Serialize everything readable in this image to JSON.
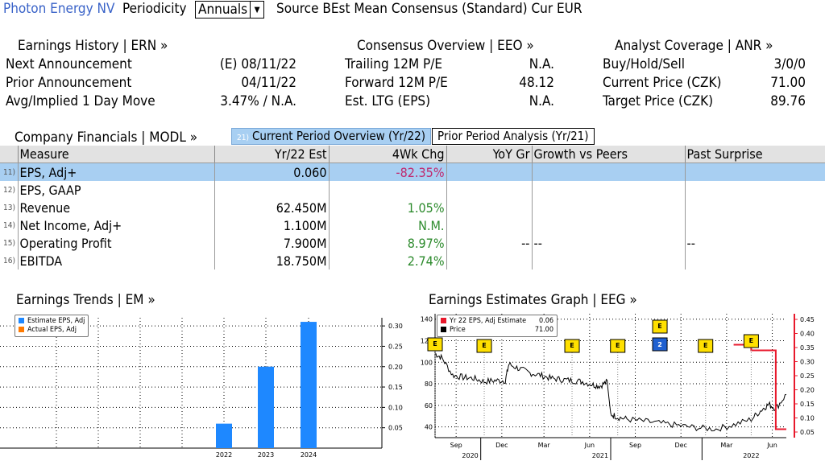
{
  "header": {
    "security": "Photon Energy NV",
    "periodicity_label": "Periodicity",
    "periodicity_value": "Annuals",
    "source_text": "Source BEst Mean Consensus (Standard) Cur EUR"
  },
  "earnings_history": {
    "title": "Earnings History | ERN »",
    "rows": [
      {
        "label": "Next Announcement",
        "value": "(E)  08/11/22"
      },
      {
        "label": "Prior Announcement",
        "value": "04/11/22"
      },
      {
        "label": "Avg/Implied 1 Day Move",
        "value": "3.47% / N.A."
      }
    ]
  },
  "consensus_overview": {
    "title": "Consensus Overview | EEO »",
    "rows": [
      {
        "label": "Trailing 12M P/E",
        "value": "N.A."
      },
      {
        "label": "Forward 12M P/E",
        "value": "48.12"
      },
      {
        "label": "Est. LTG (EPS)",
        "value": "N.A."
      }
    ]
  },
  "analyst_coverage": {
    "title": "Analyst Coverage | ANR »",
    "rows": [
      {
        "label": "Buy/Hold/Sell",
        "value": "3/0/0"
      },
      {
        "label": "Current Price (CZK)",
        "value": "71.00"
      },
      {
        "label": "Target Price (CZK)",
        "value": "89.76"
      }
    ]
  },
  "company_financials": {
    "title": "Company Financials | MODL »",
    "tabs": [
      {
        "num": "21)",
        "label": "Current Period Overview (Yr/22)",
        "active": true
      },
      {
        "label": "Prior Period Analysis (Yr/21)",
        "active": false
      }
    ],
    "columns": [
      "Measure",
      "Yr/22 Est",
      "4Wk Chg",
      "YoY Gr",
      "Growth vs Peers",
      "Past Surprise"
    ],
    "rows": [
      {
        "idx": "11)",
        "measure": "EPS, Adj+",
        "est": "0.060",
        "chg": "-82.35%",
        "chg_class": "neg",
        "yoy": "",
        "peers": "",
        "surprise": ""
      },
      {
        "idx": "12)",
        "measure": "EPS, GAAP",
        "est": "",
        "chg": "",
        "chg_class": "",
        "yoy": "",
        "peers": "",
        "surprise": ""
      },
      {
        "idx": "13)",
        "measure": "Revenue",
        "est": "62.450M",
        "chg": "1.05%",
        "chg_class": "pos",
        "yoy": "",
        "peers": "",
        "surprise": ""
      },
      {
        "idx": "14)",
        "measure": "Net Income, Adj+",
        "est": "1.100M",
        "chg": "N.M.",
        "chg_class": "pos",
        "yoy": "",
        "peers": "",
        "surprise": ""
      },
      {
        "idx": "15)",
        "measure": "Operating Profit",
        "est": "7.900M",
        "chg": "8.97%",
        "chg_class": "pos",
        "yoy": "--",
        "peers": "--",
        "surprise": "--"
      },
      {
        "idx": "16)",
        "measure": "EBITDA",
        "est": "18.750M",
        "chg": "2.74%",
        "chg_class": "pos",
        "yoy": "",
        "peers": "",
        "surprise": ""
      }
    ]
  },
  "earnings_trends": {
    "title": "Earnings Trends | EM »",
    "legend": [
      "Estimate EPS, Adj",
      "Actual EPS, Adj"
    ]
  },
  "earnings_estimates": {
    "title": "Earnings Estimates Graph | EEG »",
    "legend": [
      {
        "label": "Yr 22 EPS, Adj Estimate",
        "value": "0.06"
      },
      {
        "label": "Price",
        "value": "71.00"
      }
    ],
    "marker_letter": "E",
    "marker_count_label": "2"
  },
  "colors": {
    "accent_blue": "#3a63c8",
    "bar_blue": "#1e88ff",
    "actual_orange": "#ff7a00",
    "selected_row": "#a8cff2",
    "estimate_red": "#e8192c",
    "negative": "#c0286e",
    "positive": "#2c8a2c"
  },
  "chart_data": [
    {
      "type": "bar",
      "title": "",
      "categories": [
        "2022",
        "2023",
        "2024"
      ],
      "series": [
        {
          "name": "Estimate EPS, Adj",
          "values": [
            0.06,
            0.2,
            0.31
          ]
        },
        {
          "name": "Actual EPS, Adj",
          "values": [
            null,
            null,
            null
          ]
        }
      ],
      "yticks": [
        0.05,
        0.1,
        0.15,
        0.2,
        0.25,
        0.3
      ],
      "ylim": [
        0,
        0.32
      ],
      "axis_side": "right",
      "legend": "top-left"
    },
    {
      "type": "line",
      "title": "",
      "x_labels": [
        "Sep",
        "Dec",
        "Mar",
        "Jun",
        "Sep",
        "Dec",
        "Mar",
        "Jun"
      ],
      "year_labels": [
        "2020",
        "2021",
        "2022"
      ],
      "price_axis": {
        "ticks": [
          40,
          60,
          80,
          100,
          120,
          140
        ],
        "range": [
          30,
          145
        ]
      },
      "estimate_axis": {
        "ticks": [
          0.05,
          0.1,
          0.15,
          0.2,
          0.25,
          0.3,
          0.35,
          0.4,
          0.45
        ],
        "range": [
          0.03,
          0.47
        ]
      },
      "series": [
        {
          "name": "Price",
          "t": [
            0,
            0.02,
            0.05,
            0.08,
            0.11,
            0.14,
            0.17,
            0.2,
            0.21,
            0.24,
            0.27,
            0.3,
            0.33,
            0.36,
            0.39,
            0.42,
            0.45,
            0.47,
            0.49,
            0.5,
            0.52,
            0.55,
            0.6,
            0.65,
            0.7,
            0.75,
            0.8,
            0.85,
            0.9,
            0.93,
            0.95,
            0.97,
            1.0
          ],
          "values": [
            108,
            104,
            88,
            86,
            85,
            82,
            83,
            83,
            98,
            94,
            90,
            88,
            85,
            84,
            83,
            82,
            79,
            78,
            82,
            52,
            49,
            47,
            45,
            43,
            41,
            39,
            38,
            42,
            47,
            56,
            61,
            57,
            70
          ]
        },
        {
          "name": "Yr 22 EPS, Adj Estimate",
          "t": [
            0.85,
            0.9,
            0.9,
            0.97,
            0.97,
            1.0
          ],
          "values": [
            0.36,
            0.36,
            0.34,
            0.34,
            0.06,
            0.06
          ]
        }
      ],
      "legend": "top-left"
    }
  ]
}
